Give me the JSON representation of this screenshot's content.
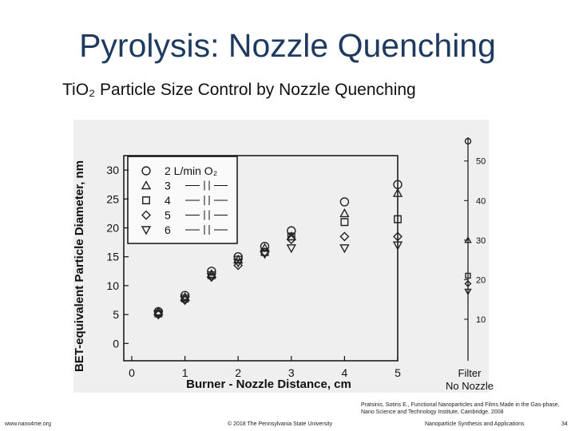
{
  "title": "Pyrolysis: Nozzle Quenching",
  "chart_data": {
    "type": "scatter",
    "title": "TiO₂ Particle Size Control by Nozzle Quenching",
    "x_label": "Burner - Nozzle Distance, cm",
    "y_label": "BET-equivalent Particle Diameter, nm",
    "filter_label": "Filter",
    "filter_sublabel": "No Nozzle",
    "x": [
      0.5,
      1,
      1.5,
      2,
      2.5,
      3,
      4,
      5
    ],
    "xlim": [
      -0.15,
      5
    ],
    "xticks": [
      0,
      1,
      2,
      3,
      4,
      5
    ],
    "ylim": [
      -3,
      32.5
    ],
    "yticks": [
      0,
      5,
      10,
      15,
      20,
      25,
      30
    ],
    "y2lim": [
      -0.5,
      56
    ],
    "y2ticks": [
      10,
      20,
      30,
      40,
      50
    ],
    "series": [
      {
        "name": "2 L/min O₂",
        "marker": "circle",
        "color": "#222",
        "values": [
          5.5,
          8.3,
          12.5,
          15,
          16.8,
          19.5,
          24.5,
          27.5
        ],
        "filter": 55
      },
      {
        "name": "3",
        "marker": "triangle",
        "color": "#222",
        "values": [
          5.5,
          8,
          12,
          14.5,
          16.5,
          18.5,
          22.5,
          26
        ],
        "filter": 30
      },
      {
        "name": "4",
        "marker": "square",
        "color": "#222",
        "values": [
          5.2,
          7.8,
          11.8,
          14.5,
          15.8,
          18.5,
          21,
          21.5
        ],
        "filter": 21
      },
      {
        "name": "5",
        "marker": "diamond",
        "color": "#222",
        "values": [
          5,
          7.5,
          11.5,
          13.5,
          15.8,
          18,
          18.5,
          18.5
        ],
        "filter": 19
      },
      {
        "name": "6",
        "marker": "triangle-down",
        "color": "#222",
        "values": [
          5,
          7.5,
          11.5,
          14,
          15.5,
          16.5,
          16.5,
          17
        ],
        "filter": 17
      }
    ]
  },
  "footer": {
    "citation": "Pratsinis, Sotiris E., Functional Nanoparticles and Films Made in the Gas-phase, Nano Science and Technology Institute, Cambridge. 2008",
    "url": "www.nano4me.org",
    "copyright": "© 2018 The Pennsylvania State University",
    "course": "Nanoparticle Synthesis and Applications",
    "page": 34
  }
}
